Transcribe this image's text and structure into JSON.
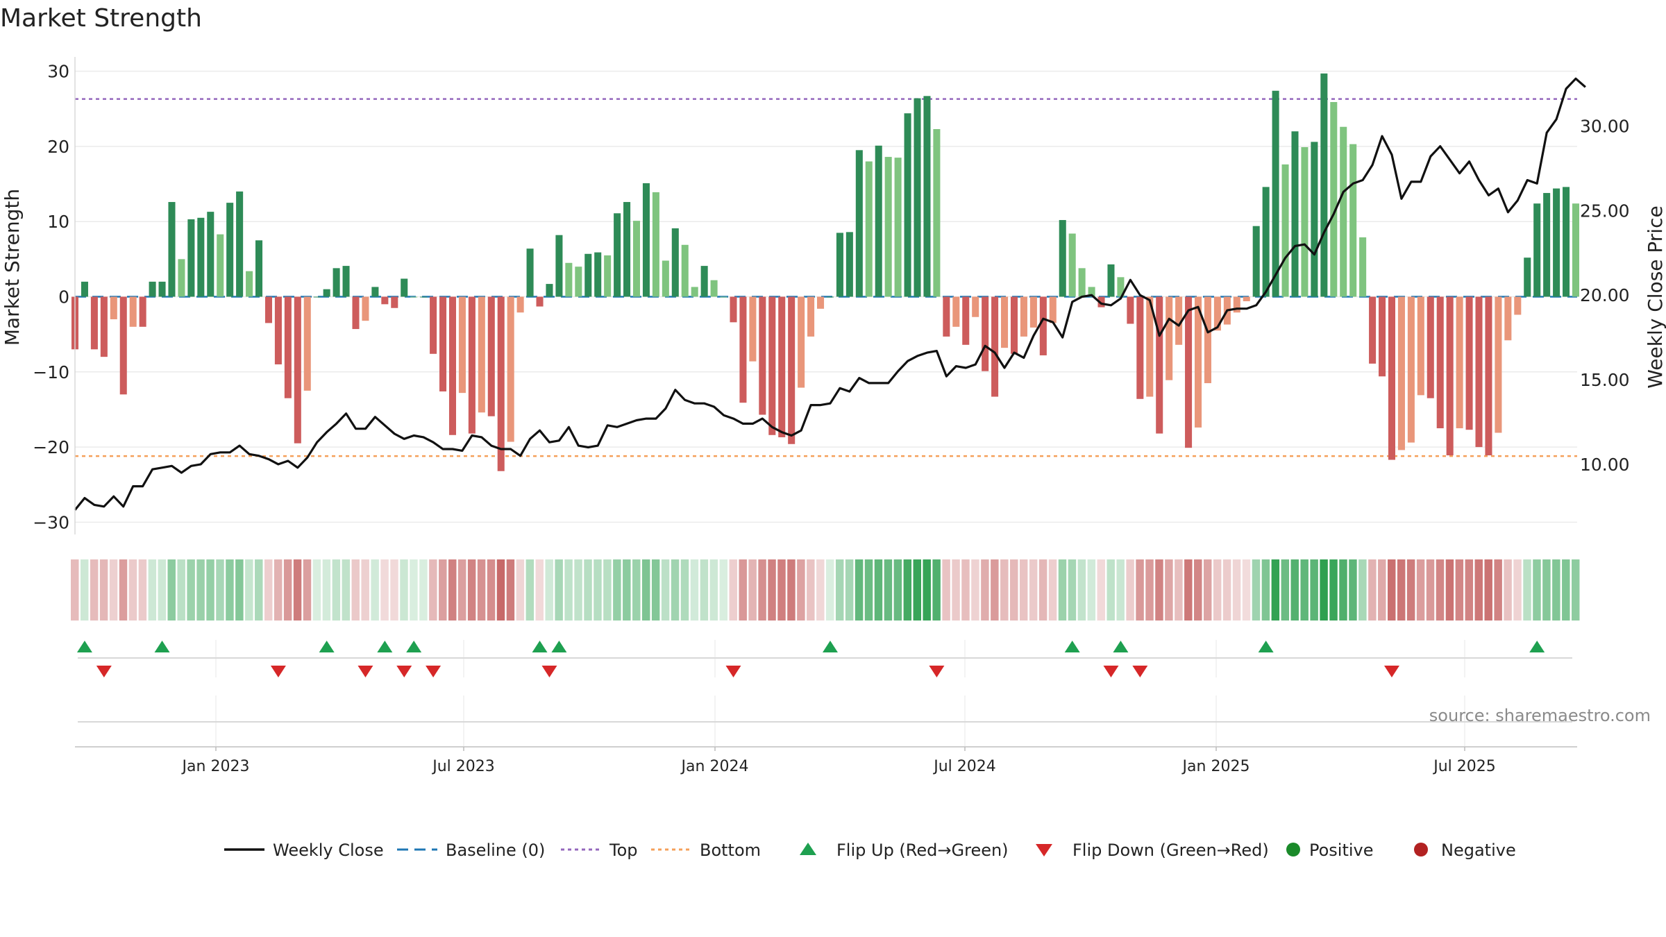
{
  "chart_data": {
    "type": "bar",
    "title": "Market Strength",
    "ylabel_left": "Market Strength",
    "ylabel_right": "Weekly Close Price",
    "ylim_left": [
      -35,
      30
    ],
    "ylim_right": [
      6.9,
      33.0
    ],
    "left_ticks": [
      30,
      20,
      10,
      0,
      -10,
      -20,
      -30
    ],
    "left_tick_labels": [
      "30",
      "20",
      "10",
      "0",
      "−10",
      "−20",
      "−30"
    ],
    "right_ticks": [
      30,
      25,
      20,
      15,
      10
    ],
    "right_tick_labels": [
      "30.00",
      "25.00",
      "20.00",
      "15.00",
      "10.00"
    ],
    "x_tick_labels": [
      "Jan 2023",
      "Jul 2023",
      "Jan 2024",
      "Jul 2024",
      "Jan 2025",
      "Jul 2025"
    ],
    "grid": true,
    "reference_lines": {
      "top": 26.3,
      "bottom": -21.2,
      "baseline": 0
    },
    "strength": [
      -7,
      2,
      -7,
      -8,
      -3,
      -13,
      -4,
      -4,
      2,
      2,
      12.6,
      5,
      10.3,
      10.5,
      11.3,
      8.3,
      12.5,
      14,
      3.4,
      7.5,
      -3.5,
      -9,
      -13.5,
      -19.5,
      -12.5,
      0,
      1,
      3.8,
      4.1,
      -4.3,
      -3.2,
      1.3,
      -1,
      -1.5,
      2.4,
      0,
      0,
      -7.6,
      -12.6,
      -18.4,
      -12.8,
      -18.2,
      -15.4,
      -15.9,
      -23.2,
      -19.3,
      -2.1,
      6.4,
      -1.3,
      1.7,
      8.2,
      4.5,
      4,
      5.7,
      5.9,
      5.5,
      11.1,
      12.6,
      10.1,
      15.1,
      13.9,
      4.8,
      9.1,
      6.9,
      1.3,
      4.1,
      2.2,
      0,
      -3.4,
      -14.1,
      -8.6,
      -15.7,
      -18.4,
      -18.7,
      -19.6,
      -12.1,
      -5.3,
      -1.6,
      0,
      8.5,
      8.6,
      19.5,
      18,
      20.1,
      18.6,
      18.5,
      24.4,
      26.4,
      26.7,
      22.3,
      -5.3,
      -4,
      -6.4,
      -2.7,
      -9.9,
      -13.3,
      -6.8,
      -7.6,
      -5.3,
      -4.1,
      -7.8,
      -3.5,
      10.2,
      8.4,
      3.8,
      1.3,
      -1.4,
      4.3,
      2.6,
      -3.6,
      -13.6,
      -13.3,
      -18.2,
      -11.1,
      -6.4,
      -20.1,
      -17.4,
      -11.5,
      -4.5,
      -3.7,
      -2.1,
      -0.6,
      9.4,
      14.6,
      27.4,
      17.6,
      22,
      19.9,
      20.6,
      29.7,
      25.9,
      22.6,
      20.3,
      7.9,
      -8.9,
      -10.6,
      -21.7,
      -20.4,
      -19.4,
      -13.1,
      -13.5,
      -17.5,
      -21.1,
      -17.5,
      -17.7,
      -20,
      -21.1,
      -18.1,
      -5.8,
      -2.4,
      5.2,
      12.4,
      13.8,
      14.4,
      14.6,
      12.4
    ],
    "weekly_close": [
      7.3,
      8,
      7.6,
      7.5,
      8.1,
      7.5,
      8.7,
      8.7,
      9.7,
      9.8,
      9.9,
      9.5,
      9.9,
      10,
      10.6,
      10.7,
      10.7,
      11.1,
      10.6,
      10.5,
      10.3,
      10,
      10.2,
      9.8,
      10.4,
      11.3,
      11.9,
      12.4,
      13,
      12.1,
      12.1,
      12.8,
      12.3,
      11.8,
      11.5,
      11.7,
      11.6,
      11.3,
      10.9,
      10.9,
      10.8,
      11.7,
      11.6,
      11.1,
      10.9,
      10.9,
      10.5,
      11.5,
      12,
      11.3,
      11.4,
      12.2,
      11.1,
      11,
      11.1,
      12.3,
      12.2,
      12.4,
      12.6,
      12.7,
      12.7,
      13.3,
      14.4,
      13.8,
      13.6,
      13.6,
      13.4,
      12.9,
      12.7,
      12.4,
      12.4,
      12.7,
      12.2,
      11.9,
      11.7,
      12,
      13.5,
      13.5,
      13.6,
      14.5,
      14.3,
      15.1,
      14.8,
      14.8,
      14.8,
      15.5,
      16.1,
      16.4,
      16.6,
      16.7,
      15.2,
      15.8,
      15.7,
      15.9,
      17,
      16.6,
      15.7,
      16.6,
      16.3,
      17.6,
      18.6,
      18.4,
      17.5,
      19.6,
      19.9,
      20,
      19.5,
      19.4,
      19.8,
      20.9,
      20,
      19.7,
      17.6,
      18.6,
      18.2,
      19.1,
      19.3,
      17.8,
      18.1,
      19.1,
      19.2,
      19.2,
      19.4,
      20.2,
      21.2,
      22.2,
      22.9,
      23,
      22.4,
      23.7,
      24.8,
      26.1,
      26.6,
      26.8,
      27.7,
      29.4,
      28.3,
      25.7,
      26.7,
      26.7,
      28.2,
      28.8,
      28,
      27.2,
      27.9,
      26.8,
      25.9,
      26.3,
      24.9,
      25.6,
      26.8,
      26.6,
      29.6,
      30.4,
      32.2,
      32.8,
      32.3
    ],
    "flip_up_weeks": [
      1,
      9,
      26,
      32,
      35,
      48,
      50,
      78,
      103,
      108,
      123,
      151
    ],
    "flip_down_weeks": [
      3,
      21,
      30,
      34,
      37,
      49,
      68,
      89,
      107,
      110,
      136
    ],
    "legend": [
      "Weekly Close",
      "Baseline (0)",
      "Top",
      "Bottom",
      "Flip Up (Red→Green)",
      "Flip Down (Green→Red)",
      "Positive",
      "Negative"
    ],
    "colors": {
      "pos_dark": "#2e8b57",
      "pos_light": "#7fc47f",
      "neg_dark": "#cd5c5c",
      "neg_light": "#e9967a",
      "line": "#111111",
      "baseline": "#1f77b4",
      "top": "#9467bd",
      "bottom": "#f5a05a",
      "flip_up": "#1ea050",
      "flip_down": "#d62728",
      "positive_dot": "#1a8a2a",
      "negative_dot": "#b22222"
    },
    "source": "source: sharemaestro.com"
  }
}
